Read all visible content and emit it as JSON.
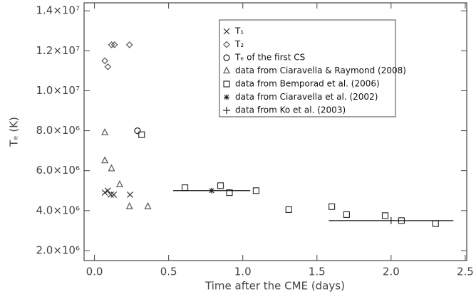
{
  "chart_data": {
    "type": "scatter",
    "x_label": "Time after the CME (days)",
    "y_label": "Tₑ (K)",
    "xlim": [
      -0.07,
      2.51
    ],
    "ylim": [
      1500000,
      14400000
    ],
    "xticks": [
      {
        "value": 0,
        "label": "0.0"
      },
      0.5,
      {
        "value": 1,
        "label": "1.0"
      },
      1.5,
      {
        "value": 2,
        "label": "2.0"
      },
      2.5
    ],
    "yticks": [
      {
        "value": 2000000,
        "label": "2.0×10⁶"
      },
      {
        "value": 4000000,
        "label": "4.0×10⁶"
      },
      {
        "value": 6000000,
        "label": "6.0×10⁶"
      },
      {
        "value": 8000000,
        "label": "8.0×10⁶"
      },
      {
        "value": 10000000,
        "label": "1.0×10⁷"
      },
      {
        "value": 12000000,
        "label": "1.2×10⁷"
      },
      {
        "value": 14000000,
        "label": "1.4×10⁷"
      }
    ],
    "legend": "upper right",
    "series": [
      {
        "name": "T₁",
        "marker": "x",
        "color": "#333333",
        "x": [
          0.07,
          0.09,
          0.11,
          0.13,
          0.24
        ],
        "values": [
          4900000,
          5000000,
          4800000,
          4800000,
          4800000
        ]
      },
      {
        "name": "T₂",
        "marker": "diamond",
        "color": "#555555",
        "x": [
          0.07,
          0.09,
          0.115,
          0.135,
          0.236
        ],
        "values": [
          11500000,
          11200000,
          12300000,
          12300000,
          12300000
        ]
      },
      {
        "name": "Tₑ of the first CS",
        "marker": "circle",
        "color": "#222222",
        "x": [
          0.29
        ],
        "values": [
          8000000
        ]
      },
      {
        "name": "data from Ciaravella & Raymond (2008)",
        "marker": "triangle",
        "color": "#555555",
        "x": [
          0.07,
          0.07,
          0.115,
          0.17,
          0.236,
          0.36
        ],
        "values": [
          7900000,
          6500000,
          6100000,
          5300000,
          4200000,
          4200000
        ]
      },
      {
        "name": "data from Bemporad et al. (2006)",
        "marker": "square",
        "color": "#333333",
        "x": [
          0.318,
          0.61,
          0.85,
          0.91,
          1.09,
          1.31,
          1.6,
          1.7,
          1.96,
          2.07,
          2.3
        ],
        "values": [
          7800000,
          5150000,
          5250000,
          4900000,
          5000000,
          4050000,
          4200000,
          3800000,
          3750000,
          3500000,
          3350000
        ]
      },
      {
        "name": "data from Ciaravella et al. (2002)",
        "marker": "asterisk",
        "color": "#222222",
        "x": [
          0.79
        ],
        "xerr": [
          0.26
        ],
        "values": [
          5000000
        ]
      },
      {
        "name": "data from Ko et al. (2003)",
        "marker": "plus",
        "color": "#222222",
        "x": [
          2.0
        ],
        "xerr": [
          0.42
        ],
        "values": [
          3500000
        ]
      }
    ]
  }
}
